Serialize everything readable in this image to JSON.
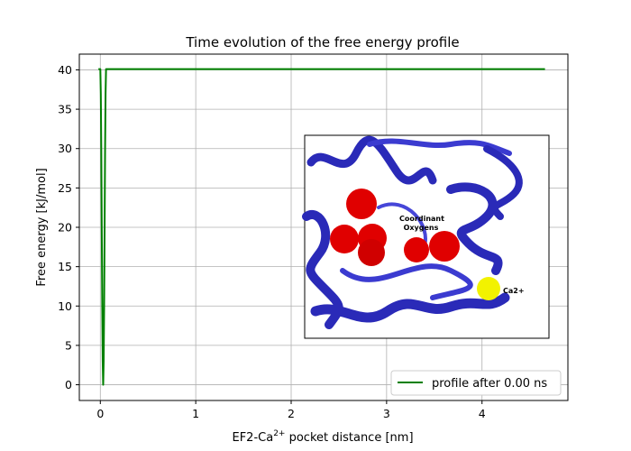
{
  "chart_data": {
    "type": "line",
    "title": "Time evolution of the free energy profile",
    "xlabel_main": "EF2-Ca",
    "xlabel_sup": "2+",
    "xlabel_rest": " pocket distance [nm]",
    "ylabel": "Free energy [kJ/mol]",
    "xlim": [
      -0.22,
      4.9
    ],
    "ylim": [
      -2.0,
      42.0
    ],
    "xticks": [
      0,
      1,
      2,
      3,
      4
    ],
    "yticks": [
      0,
      5,
      10,
      15,
      20,
      25,
      30,
      35,
      40
    ],
    "grid": true,
    "legend_position": "lower-right",
    "series": [
      {
        "name": "profile after 0.00 ns",
        "color": "#008000",
        "x": [
          -0.02,
          0.0,
          0.005,
          0.01,
          0.015,
          0.02,
          0.025,
          0.03,
          0.035,
          0.04,
          0.045,
          0.05,
          0.055,
          0.06,
          0.07,
          0.1,
          1.0,
          2.0,
          3.0,
          4.0,
          4.66
        ],
        "y": [
          40.1,
          40.1,
          37.0,
          30.0,
          20.0,
          10.0,
          3.0,
          0.0,
          3.0,
          10.0,
          20.0,
          30.0,
          37.0,
          40.1,
          40.1,
          40.1,
          40.1,
          40.1,
          40.1,
          40.1,
          40.1
        ]
      }
    ]
  },
  "inset": {
    "label_coordinant": "Coordinant",
    "label_oxygens": "Oxygens",
    "label_ca": "Ca2+"
  }
}
